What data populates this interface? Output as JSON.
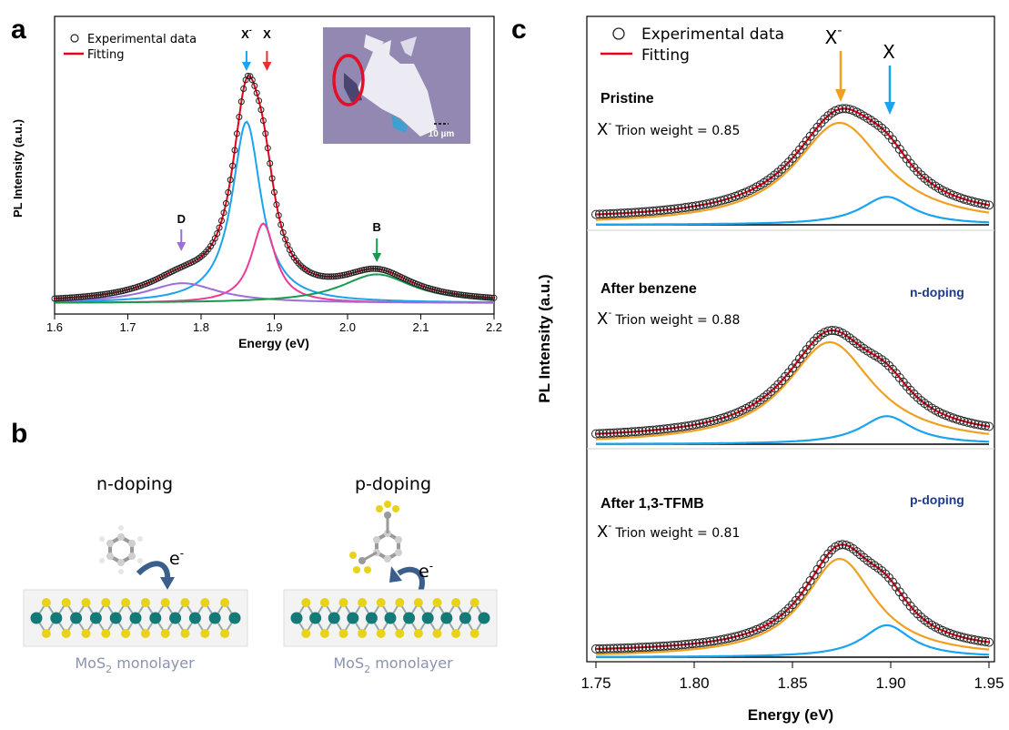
{
  "panels": {
    "a": {
      "letter": "a"
    },
    "b": {
      "letter": "b"
    },
    "c": {
      "letter": "c"
    }
  },
  "colors": {
    "data_marker": "#222222",
    "fit": "#e6001a",
    "trion": "#1aa3ee",
    "exciton": "#ee3a96",
    "defect": "#9b6fd6",
    "b_exciton": "#1a9a50",
    "trion_c": "#f0a020",
    "exciton_c": "#1aa3ee",
    "arrow_X": "#e83030",
    "arrow_Xminus": "#1aa3ee",
    "arrow_D": "#9b6fd6",
    "arrow_B": "#1a9a50",
    "doping_label": "#1f3a8a",
    "monolayer_label": "#8a93b0",
    "mo_atom": "#137a78",
    "s_atom": "#e8d318"
  },
  "chart_data": [
    {
      "id": "a",
      "type": "line",
      "xlabel": "Energy (eV)",
      "ylabel": "PL Intensity (a.u.)",
      "xlim": [
        1.6,
        2.2
      ],
      "xticks": [
        "1.6",
        "1.7",
        "1.8",
        "1.9",
        "2.0",
        "2.1",
        "2.2"
      ],
      "legend": {
        "position": "top-left",
        "entries": [
          "Experimental data",
          "Fitting"
        ]
      },
      "annotations": [
        {
          "text": "X",
          "sup": "-",
          "x": 1.862,
          "color": "arrow_Xminus"
        },
        {
          "text": "X",
          "x": 1.885,
          "color": "arrow_X"
        },
        {
          "text": "D",
          "x": 1.773,
          "color": "arrow_D"
        },
        {
          "text": "B",
          "x": 2.04,
          "color": "arrow_B"
        }
      ],
      "inset": {
        "scale_bar": "10 µm"
      },
      "peaks": [
        {
          "name": "X-",
          "center": 1.862,
          "height": 0.82,
          "width": 0.024,
          "color": "trion"
        },
        {
          "name": "X",
          "center": 1.885,
          "height": 0.36,
          "width": 0.02,
          "color": "exciton"
        },
        {
          "name": "D",
          "center": 1.775,
          "height": 0.09,
          "width": 0.06,
          "color": "defect"
        },
        {
          "name": "B",
          "center": 2.04,
          "height": 0.13,
          "width": 0.06,
          "color": "b_exciton"
        }
      ]
    },
    {
      "id": "c",
      "type": "line",
      "xlabel": "Energy (eV)",
      "ylabel": "PL Intensity (a.u.)",
      "xlim": [
        1.75,
        1.95
      ],
      "xticks": [
        "1.75",
        "1.80",
        "1.85",
        "1.90",
        "1.95"
      ],
      "legend": {
        "position": "top-left",
        "entries": [
          "Experimental data",
          "Fitting"
        ]
      },
      "annotations": [
        {
          "text": "X",
          "sup": "-",
          "x": 1.875,
          "color": "trion_c"
        },
        {
          "text": "X",
          "x": 1.899,
          "color": "exciton_c"
        }
      ],
      "series": [
        {
          "name": "Pristine",
          "trion_weight_text": "Trion weight = 0.85",
          "doping": "",
          "trion": {
            "center": 1.874,
            "height": 0.8,
            "width": 0.028
          },
          "exciton": {
            "center": 1.898,
            "height": 0.22,
            "width": 0.016
          }
        },
        {
          "name": "After benzene",
          "trion_weight_text": "Trion weight = 0.88",
          "doping": "n-doping",
          "trion": {
            "center": 1.869,
            "height": 0.8,
            "width": 0.027
          },
          "exciton": {
            "center": 1.898,
            "height": 0.22,
            "width": 0.016
          }
        },
        {
          "name": "After 1,3-TFMB",
          "trion_weight_text": "Trion weight = 0.81",
          "doping": "p-doping",
          "trion": {
            "center": 1.874,
            "height": 0.8,
            "width": 0.022
          },
          "exciton": {
            "center": 1.898,
            "height": 0.26,
            "width": 0.015
          }
        }
      ]
    }
  ],
  "panel_b": {
    "left": {
      "title": "n-doping",
      "electron": "e",
      "electron_sup": "-",
      "monolayer_pre": "MoS",
      "monolayer_sub": "2",
      "monolayer_post": " monolayer"
    },
    "right": {
      "title": "p-doping",
      "electron": "e",
      "electron_sup": "-",
      "monolayer_pre": "MoS",
      "monolayer_sub": "2",
      "monolayer_post": " monolayer"
    }
  }
}
